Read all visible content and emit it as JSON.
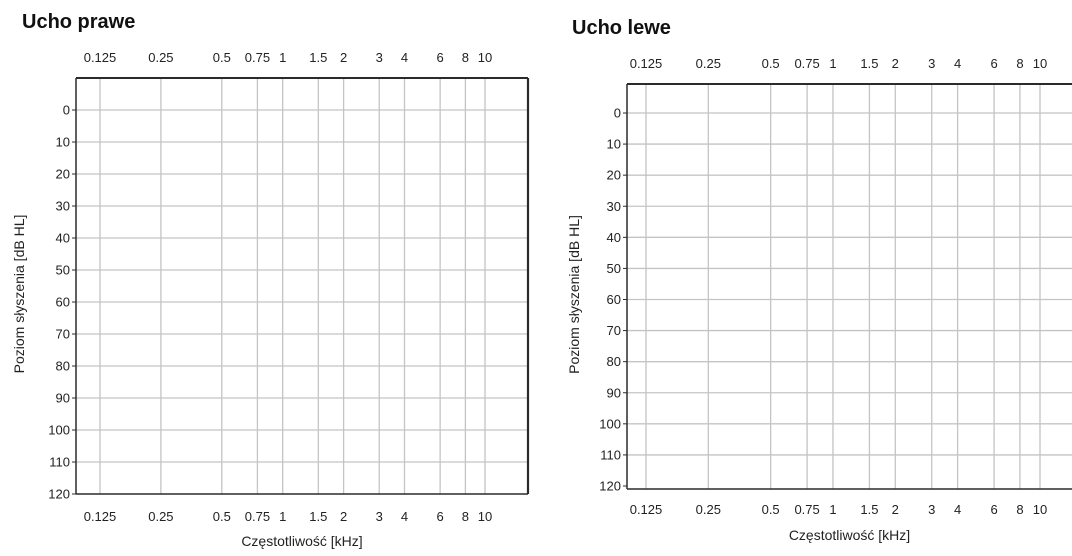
{
  "chart_data": [
    {
      "type": "line",
      "title": "Ucho prawe",
      "xlabel": "Częstotliwość [kHz]",
      "ylabel": "Poziom słyszenia [dB HL]",
      "x_scale": "log",
      "x_ticks": [
        0.125,
        0.25,
        0.5,
        0.75,
        1,
        1.5,
        2,
        3,
        4,
        6,
        8,
        10
      ],
      "x_tick_labels": [
        "0.125",
        "0.25",
        "0.5",
        "0.75",
        "1",
        "1.5",
        "2",
        "3",
        "4",
        "6",
        "8",
        "10"
      ],
      "ylim": [
        120,
        -10
      ],
      "y_ticks": [
        0,
        10,
        20,
        30,
        40,
        50,
        60,
        70,
        80,
        90,
        100,
        110,
        120
      ],
      "y_inverted": true,
      "grid": true,
      "series": []
    },
    {
      "type": "line",
      "title": "Ucho lewe",
      "xlabel": "Częstotliwość [kHz]",
      "ylabel": "Poziom słyszenia [dB HL]",
      "x_scale": "log",
      "x_ticks": [
        0.125,
        0.25,
        0.5,
        0.75,
        1,
        1.5,
        2,
        3,
        4,
        6,
        8,
        10
      ],
      "x_tick_labels": [
        "0.125",
        "0.25",
        "0.5",
        "0.75",
        "1",
        "1.5",
        "2",
        "3",
        "4",
        "6",
        "8",
        "10"
      ],
      "ylim": [
        120,
        -10
      ],
      "y_ticks": [
        0,
        10,
        20,
        30,
        40,
        50,
        60,
        70,
        80,
        90,
        100,
        110,
        120
      ],
      "y_inverted": true,
      "grid": true,
      "series": []
    }
  ],
  "colors": {
    "grid": "#c4c4c4",
    "frame": "#2b2b2b",
    "text": "#222222",
    "ylabel_accent": "#e8a040"
  }
}
